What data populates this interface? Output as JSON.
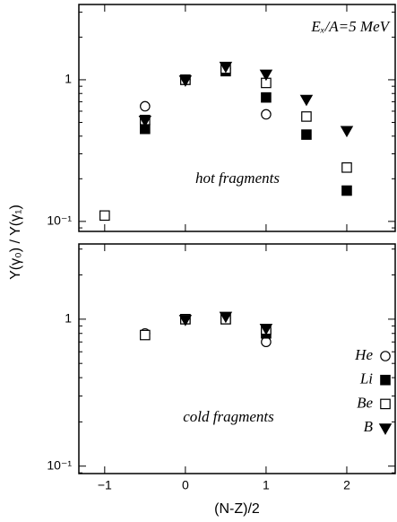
{
  "chart_data": [
    {
      "type": "scatter",
      "ylabel": "Y(γ₀) / Y(γ₁)",
      "annotation": "Eₓ/A=5 MeV",
      "panel_label": "hot fragments",
      "log_y": true,
      "xlim": [
        -1.32,
        2.6
      ],
      "ylim": [
        0.085,
        3.4
      ],
      "xticks": [
        -1,
        0,
        1,
        2
      ],
      "yticks": [
        {
          "value": 0.1,
          "label": "10⁻¹"
        },
        1
      ],
      "x": [
        -1,
        -0.5,
        0,
        0.5,
        1,
        1.5,
        2
      ],
      "series": [
        {
          "marker": "circle-open",
          "color": "#000000",
          "values": [
            null,
            0.65,
            1,
            1.2,
            0.57,
            null,
            null
          ]
        },
        {
          "marker": "square-filled",
          "color": "#000000",
          "values": [
            null,
            0.45,
            1,
            1.15,
            0.75,
            0.41,
            0.165
          ]
        },
        {
          "marker": "square-open",
          "color": "#000000",
          "values": [
            0.11,
            0.52,
            1,
            1.2,
            0.95,
            0.55,
            0.24
          ]
        },
        {
          "marker": "triangle-filled",
          "color": "#000000",
          "values": [
            null,
            0.52,
            1,
            1.25,
            1.1,
            0.73,
            0.44
          ]
        }
      ]
    },
    {
      "type": "scatter",
      "xlabel": "(N-Z)/2",
      "panel_label": "cold fragments",
      "legend": "lower right",
      "log_y": true,
      "xlim": [
        -1.32,
        2.6
      ],
      "ylim": [
        0.089,
        3.25
      ],
      "xticks": [
        {
          "value": -1,
          "label": "−1"
        },
        0,
        1,
        2
      ],
      "yticks": [
        {
          "value": 0.1,
          "label": "10⁻¹"
        },
        1
      ],
      "x": [
        -0.5,
        0,
        0.5,
        1
      ],
      "series": [
        {
          "name": "He",
          "marker": "circle-open",
          "color": "#000000",
          "values": [
            0.8,
            1,
            1.02,
            0.7
          ]
        },
        {
          "name": "Li",
          "marker": "square-filled",
          "color": "#000000",
          "values": [
            null,
            1,
            1,
            0.8
          ]
        },
        {
          "name": "Be",
          "marker": "square-open",
          "color": "#000000",
          "values": [
            0.78,
            1,
            1,
            0.85
          ]
        },
        {
          "name": "B",
          "marker": "triangle-filled",
          "color": "#000000",
          "values": [
            null,
            1,
            1.05,
            0.87
          ]
        }
      ]
    }
  ]
}
